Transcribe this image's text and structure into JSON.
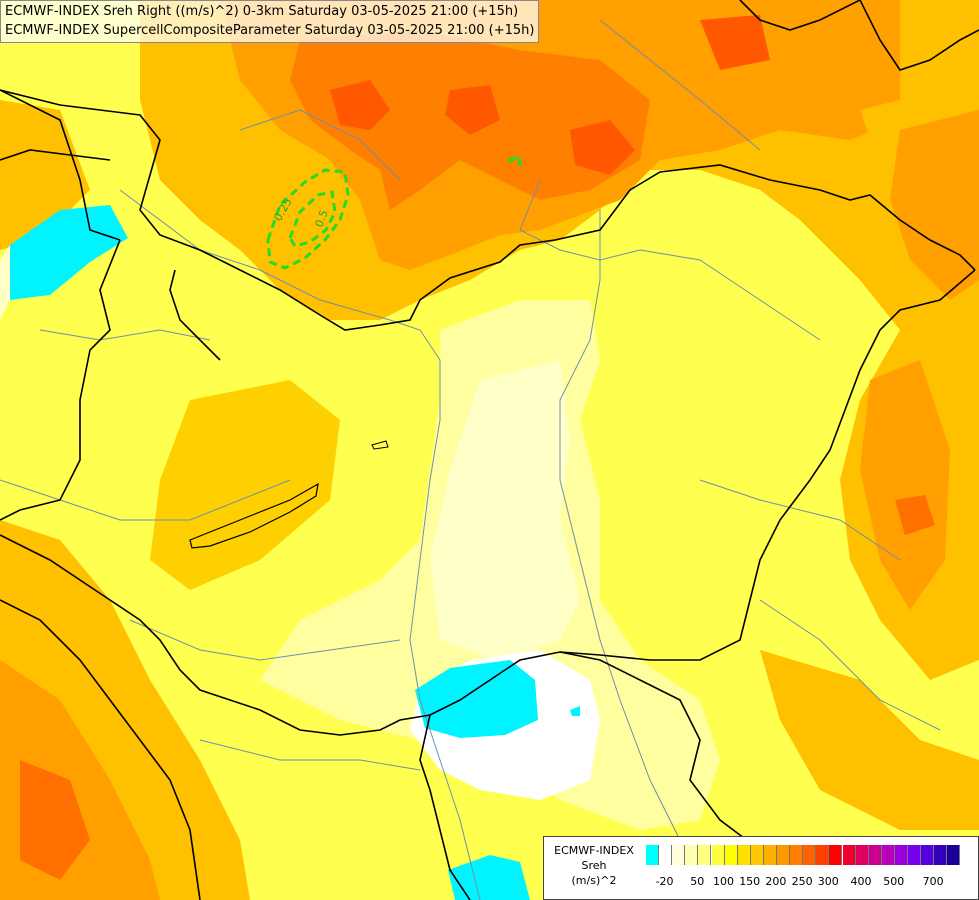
{
  "titles": {
    "line1": "ECMWF-INDEX Sreh Right ((m/s)^2) 0-3km Saturday 03-05-2025 21:00 (+15h)",
    "line2": "ECMWF-INDEX SupercellCompositeParameter Saturday 03-05-2025 21:00 (+15h)"
  },
  "contours": {
    "scp_label_1": "0.25",
    "scp_label_2": "0.5",
    "color": "#22dd22"
  },
  "legend": {
    "title_line1": "ECMWF-INDEX",
    "title_line2": "Sreh",
    "title_line3": "(m/s)^2",
    "colors": [
      "#00ffff",
      "#ffffff",
      "#ffffe0",
      "#ffffb0",
      "#ffff80",
      "#ffff40",
      "#ffff00",
      "#ffe000",
      "#ffc800",
      "#ffb000",
      "#ff9800",
      "#ff8000",
      "#ff6000",
      "#ff4000",
      "#ff0000",
      "#ee0030",
      "#dd0060",
      "#cc0090",
      "#bb00bb",
      "#9900dd",
      "#7700ee",
      "#5500dd",
      "#3300bb",
      "#1a0099"
    ],
    "labels": [
      "-20",
      "50",
      "100",
      "150",
      "200",
      "250",
      "300",
      "400",
      "500",
      "700"
    ]
  }
}
